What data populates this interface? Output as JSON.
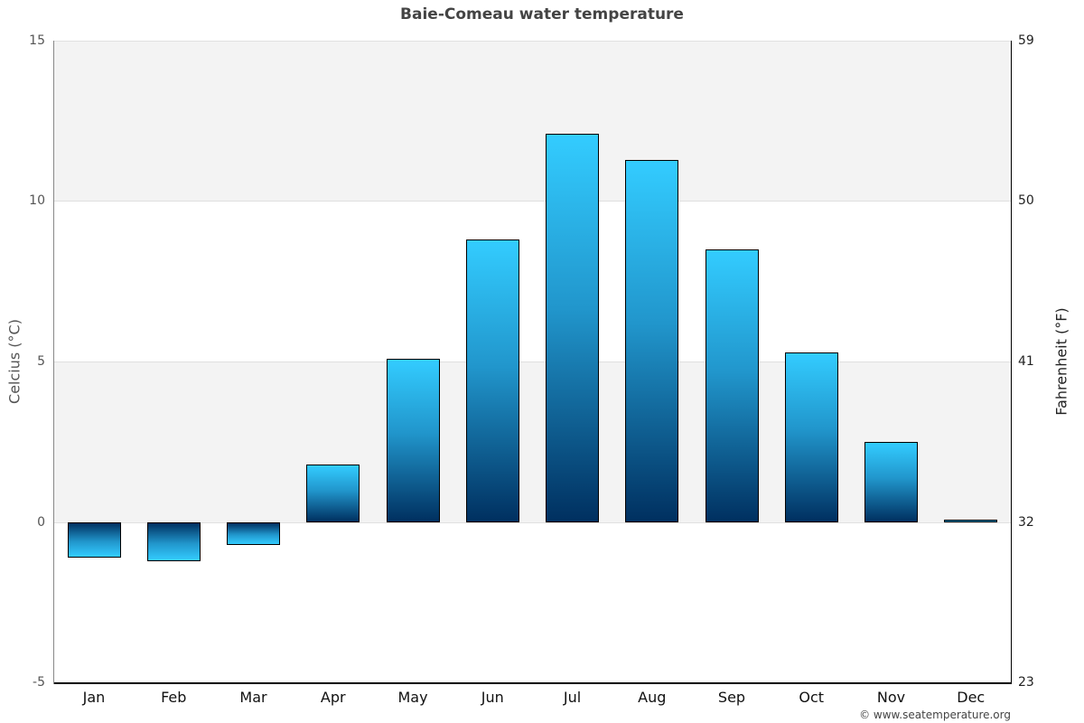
{
  "title": "Baie-Comeau water temperature",
  "y_axis_left": {
    "label": "Celcius (°C)",
    "ticks": [
      "15",
      "10",
      "5",
      "0",
      "-5"
    ]
  },
  "y_axis_right": {
    "label": "Fahrenheit (°F)",
    "ticks": [
      "59",
      "50",
      "41",
      "32",
      "23"
    ]
  },
  "months": [
    "Jan",
    "Feb",
    "Mar",
    "Apr",
    "May",
    "Jun",
    "Jul",
    "Aug",
    "Sep",
    "Oct",
    "Nov",
    "Dec"
  ],
  "credit": "© www.seatemperature.org",
  "colors": {
    "bar_light": "#33ccff",
    "bar_dark": "#003060",
    "band": "#f3f3f3"
  },
  "chart_data": {
    "type": "bar",
    "title": "Baie-Comeau water temperature",
    "xlabel": "",
    "ylabel": "Celcius (°C)",
    "ylabel_right": "Fahrenheit (°F)",
    "categories": [
      "Jan",
      "Feb",
      "Mar",
      "Apr",
      "May",
      "Jun",
      "Jul",
      "Aug",
      "Sep",
      "Oct",
      "Nov",
      "Dec"
    ],
    "values": [
      -1.1,
      -1.2,
      -0.7,
      1.8,
      5.1,
      8.8,
      12.1,
      11.3,
      8.5,
      5.3,
      2.5,
      0.1
    ],
    "ylim": [
      -5,
      15
    ],
    "yticks": [
      -5,
      0,
      5,
      10,
      15
    ],
    "ylim_right": [
      23,
      59
    ],
    "yticks_right": [
      23,
      32,
      41,
      50,
      59
    ],
    "grid": true,
    "legend": null
  }
}
